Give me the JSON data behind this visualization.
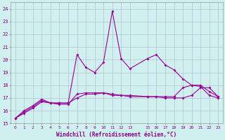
{
  "xlabel": "Windchill (Refroidissement éolien,°C)",
  "bg_color": "#d0f0f0",
  "grid_color": "#b0b0cc",
  "line_color": "#990099",
  "ylim": [
    15,
    24.5
  ],
  "xlim": [
    -0.5,
    23.5
  ],
  "yticks": [
    15,
    16,
    17,
    18,
    19,
    20,
    21,
    22,
    23,
    24
  ],
  "xtick_pos": [
    0,
    1,
    2,
    3,
    4,
    5,
    6,
    7,
    8,
    9,
    10,
    11,
    12,
    13,
    15,
    16,
    17,
    18,
    19,
    20,
    21,
    22,
    23
  ],
  "xtick_labels": [
    "0",
    "1",
    "2",
    "3",
    "4",
    "5",
    "6",
    "7",
    "8",
    "9",
    "10",
    "11",
    "12",
    "13",
    "15",
    "16",
    "17",
    "18",
    "19",
    "20",
    "21",
    "22",
    "23"
  ],
  "series1_x": [
    0,
    1,
    2,
    3,
    4,
    5,
    6,
    7,
    8,
    9,
    10,
    11,
    12,
    13,
    15,
    16,
    17,
    18,
    19,
    20,
    21,
    22,
    23
  ],
  "series1_y": [
    15.4,
    16.0,
    16.4,
    16.9,
    16.6,
    16.6,
    16.6,
    20.4,
    19.4,
    19.0,
    19.8,
    23.8,
    20.1,
    19.3,
    20.1,
    20.4,
    19.6,
    19.2,
    18.5,
    18.0,
    17.9,
    17.2,
    17.0
  ],
  "series2_x": [
    0,
    1,
    2,
    3,
    4,
    5,
    6,
    7,
    8,
    9,
    10,
    11,
    12,
    13,
    15,
    16,
    17,
    18,
    19,
    20,
    21,
    22,
    23
  ],
  "series2_y": [
    15.4,
    15.8,
    16.2,
    16.7,
    16.6,
    16.5,
    16.5,
    17.3,
    17.4,
    17.4,
    17.4,
    17.2,
    17.2,
    17.1,
    17.1,
    17.1,
    17.0,
    17.0,
    17.0,
    17.2,
    17.8,
    17.8,
    17.1
  ],
  "series3_x": [
    0,
    1,
    2,
    3,
    4,
    5,
    6,
    7,
    8,
    9,
    10,
    11,
    12,
    13,
    15,
    16,
    17,
    18,
    19,
    20,
    21,
    22,
    23
  ],
  "series3_y": [
    15.4,
    15.9,
    16.3,
    16.8,
    16.6,
    16.6,
    16.6,
    17.0,
    17.3,
    17.3,
    17.4,
    17.3,
    17.2,
    17.2,
    17.1,
    17.1,
    17.1,
    17.1,
    17.8,
    18.0,
    18.0,
    17.5,
    17.1
  ],
  "xlabel_fontsize": 5.5,
  "tick_fontsize": 4.5,
  "ytick_fontsize": 5.0,
  "linewidth": 0.8,
  "markersize": 2.0
}
